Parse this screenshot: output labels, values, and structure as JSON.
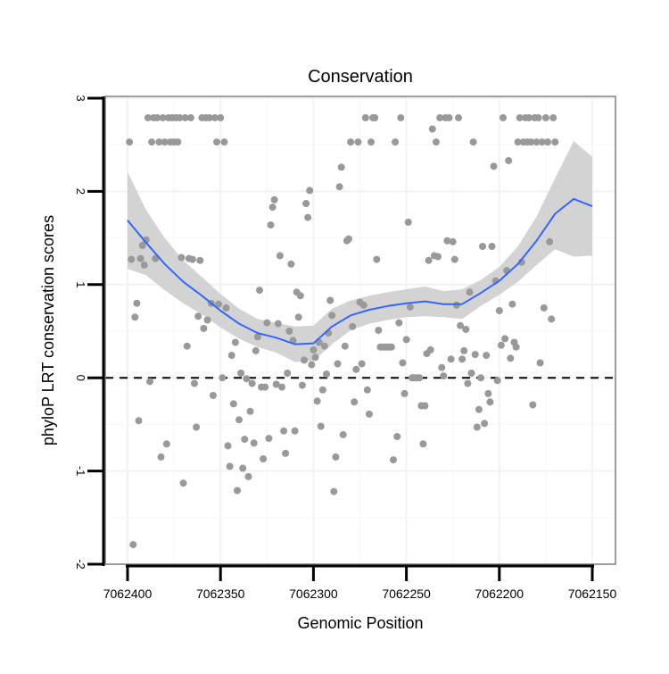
{
  "chart_data": {
    "type": "scatter",
    "title": "Conservation",
    "xlabel": "Genomic Position",
    "ylabel": "phyloP LRT conservation scores",
    "xlim": [
      7062150,
      7062400
    ],
    "x_reversed": true,
    "ylim": [
      -2,
      3
    ],
    "x_ticks": [
      7062400,
      7062350,
      7062300,
      7062250,
      7062200,
      7062150
    ],
    "x_tick_labels": [
      "7062400",
      "7062350",
      "7062300",
      "7062250",
      "7062200",
      "7062150"
    ],
    "y_ticks": [
      -2,
      -1,
      0,
      1,
      2,
      3
    ],
    "y_tick_labels": [
      "-2",
      "-1",
      "0",
      "1",
      "2",
      "3"
    ],
    "grid": true,
    "reference_line": {
      "y": 0,
      "style": "dashed"
    },
    "series": [
      {
        "name": "phyloP scores",
        "kind": "points",
        "color": "#999999",
        "points": [
          [
            7062399,
            2.53
          ],
          [
            7062398,
            1.27
          ],
          [
            7062397,
            -1.79
          ],
          [
            7062396,
            0.65
          ],
          [
            7062395,
            0.8
          ],
          [
            7062394,
            -0.46
          ],
          [
            7062393,
            1.28
          ],
          [
            7062392,
            1.42
          ],
          [
            7062391,
            1.21
          ],
          [
            7062390,
            1.48
          ],
          [
            7062389,
            2.79
          ],
          [
            7062388,
            -0.04
          ],
          [
            7062387,
            2.53
          ],
          [
            7062386,
            2.79
          ],
          [
            7062385,
            1.28
          ],
          [
            7062384,
            2.79
          ],
          [
            7062383,
            2.53
          ],
          [
            7062382,
            -0.85
          ],
          [
            7062381,
            2.79
          ],
          [
            7062380,
            2.53
          ],
          [
            7062379,
            -0.71
          ],
          [
            7062378,
            2.79
          ],
          [
            7062377,
            2.53
          ],
          [
            7062376,
            2.79
          ],
          [
            7062375,
            2.53
          ],
          [
            7062374,
            2.79
          ],
          [
            7062373,
            2.53
          ],
          [
            7062372,
            2.79
          ],
          [
            7062371,
            1.29
          ],
          [
            7062370,
            -1.13
          ],
          [
            7062369,
            2.79
          ],
          [
            7062368,
            0.34
          ],
          [
            7062367,
            1.28
          ],
          [
            7062366,
            2.79
          ],
          [
            7062365,
            1.27
          ],
          [
            7062364,
            -0.06
          ],
          [
            7062363,
            -0.53
          ],
          [
            7062362,
            0.66
          ],
          [
            7062361,
            1.26
          ],
          [
            7062360,
            2.79
          ],
          [
            7062359,
            0.53
          ],
          [
            7062358,
            2.79
          ],
          [
            7062357,
            0.62
          ],
          [
            7062356,
            2.79
          ],
          [
            7062355,
            0.8
          ],
          [
            7062354,
            -0.19
          ],
          [
            7062353,
            2.79
          ],
          [
            7062352,
            2.53
          ],
          [
            7062351,
            0.79
          ],
          [
            7062350,
            2.79
          ],
          [
            7062349,
            0.0
          ],
          [
            7062348,
            2.53
          ],
          [
            7062347,
            0.75
          ],
          [
            7062346,
            -0.73
          ],
          [
            7062345,
            -0.95
          ],
          [
            7062344,
            0.24
          ],
          [
            7062343,
            -0.28
          ],
          [
            7062342,
            0.38
          ],
          [
            7062341,
            -1.21
          ],
          [
            7062340,
            -0.45
          ],
          [
            7062339,
            0.05
          ],
          [
            7062338,
            -0.97
          ],
          [
            7062337,
            -0.66
          ],
          [
            7062336,
            -0.01
          ],
          [
            7062335,
            -1.06
          ],
          [
            7062334,
            -0.36
          ],
          [
            7062333,
            -0.06
          ],
          [
            7062332,
            -0.7
          ],
          [
            7062331,
            0.29
          ],
          [
            7062330,
            0.44
          ],
          [
            7062329,
            0.94
          ],
          [
            7062328,
            -0.1
          ],
          [
            7062327,
            -0.87
          ],
          [
            7062326,
            -0.1
          ],
          [
            7062325,
            0.59
          ],
          [
            7062324,
            -0.65
          ],
          [
            7062323,
            1.64
          ],
          [
            7062322,
            1.83
          ],
          [
            7062321,
            1.91
          ],
          [
            7062320,
            -0.07
          ],
          [
            7062319,
            0.58
          ],
          [
            7062318,
            1.31
          ],
          [
            7062317,
            -0.1
          ],
          [
            7062316,
            -0.57
          ],
          [
            7062315,
            -0.81
          ],
          [
            7062314,
            0.05
          ],
          [
            7062313,
            0.5
          ],
          [
            7062312,
            1.22
          ],
          [
            7062311,
            0.4
          ],
          [
            7062310,
            -0.57
          ],
          [
            7062309,
            0.92
          ],
          [
            7062308,
            0.65
          ],
          [
            7062307,
            0.88
          ],
          [
            7062306,
            -0.08
          ],
          [
            7062305,
            0.19
          ],
          [
            7062304,
            1.87
          ],
          [
            7062303,
            1.72
          ],
          [
            7062302,
            2.01
          ],
          [
            7062301,
            0.14
          ],
          [
            7062300,
            0.3
          ],
          [
            7062299,
            0.22
          ],
          [
            7062298,
            -0.25
          ],
          [
            7062297,
            0.38
          ],
          [
            7062296,
            -0.52
          ],
          [
            7062295,
            -0.13
          ],
          [
            7062294,
            0.34
          ],
          [
            7062293,
            0.04
          ],
          [
            7062292,
            0.48
          ],
          [
            7062291,
            0.83
          ],
          [
            7062290,
            0.67
          ],
          [
            7062289,
            -1.22
          ],
          [
            7062288,
            -0.85
          ],
          [
            7062287,
            0.15
          ],
          [
            7062286,
            2.05
          ],
          [
            7062285,
            2.26
          ],
          [
            7062284,
            -0.61
          ],
          [
            7062283,
            0.34
          ],
          [
            7062282,
            1.47
          ],
          [
            7062281,
            1.49
          ],
          [
            7062280,
            2.53
          ],
          [
            7062279,
            0.55
          ],
          [
            7062278,
            -0.26
          ],
          [
            7062277,
            0.09
          ],
          [
            7062276,
            2.53
          ],
          [
            7062275,
            0.81
          ],
          [
            7062274,
            0.15
          ],
          [
            7062273,
            0.78
          ],
          [
            7062272,
            2.79
          ],
          [
            7062271,
            -0.13
          ],
          [
            7062270,
            -0.39
          ],
          [
            7062269,
            2.53
          ],
          [
            7062268,
            2.79
          ],
          [
            7062267,
            2.79
          ],
          [
            7062266,
            1.27
          ],
          [
            7062265,
            0.51
          ],
          [
            7062264,
            0.33
          ],
          [
            7062263,
            0.33
          ],
          [
            7062262,
            0.33
          ],
          [
            7062261,
            0.33
          ],
          [
            7062260,
            0.33
          ],
          [
            7062259,
            0.33
          ],
          [
            7062258,
            0.33
          ],
          [
            7062257,
            -0.88
          ],
          [
            7062256,
            2.53
          ],
          [
            7062255,
            -0.63
          ],
          [
            7062254,
            0.59
          ],
          [
            7062253,
            2.79
          ],
          [
            7062252,
            0.16
          ],
          [
            7062251,
            -0.17
          ],
          [
            7062250,
            0.41
          ],
          [
            7062249,
            1.67
          ],
          [
            7062248,
            0.76
          ],
          [
            7062247,
            0.0
          ],
          [
            7062246,
            0.0
          ],
          [
            7062245,
            0.0
          ],
          [
            7062244,
            0.0
          ],
          [
            7062243,
            0.0
          ],
          [
            7062242,
            -0.3
          ],
          [
            7062241,
            -0.71
          ],
          [
            7062240,
            -0.3
          ],
          [
            7062239,
            0.26
          ],
          [
            7062238,
            1.26
          ],
          [
            7062237,
            0.3
          ],
          [
            7062236,
            2.67
          ],
          [
            7062235,
            1.31
          ],
          [
            7062234,
            2.53
          ],
          [
            7062233,
            1.3
          ],
          [
            7062232,
            2.79
          ],
          [
            7062231,
            0.11
          ],
          [
            7062230,
            0.02
          ],
          [
            7062229,
            2.79
          ],
          [
            7062228,
            1.47
          ],
          [
            7062227,
            2.79
          ],
          [
            7062226,
            0.2
          ],
          [
            7062225,
            1.46
          ],
          [
            7062224,
            1.27
          ],
          [
            7062223,
            0.78
          ],
          [
            7062222,
            2.79
          ],
          [
            7062221,
            0.56
          ],
          [
            7062220,
            0.2
          ],
          [
            7062219,
            0.29
          ],
          [
            7062218,
            0.52
          ],
          [
            7062217,
            -0.06
          ],
          [
            7062216,
            0.92
          ],
          [
            7062215,
            0.05
          ],
          [
            7062214,
            2.53
          ],
          [
            7062213,
            0.25
          ],
          [
            7062212,
            -0.53
          ],
          [
            7062211,
            -0.34
          ],
          [
            7062210,
            0.0
          ],
          [
            7062209,
            1.41
          ],
          [
            7062208,
            -0.49
          ],
          [
            7062207,
            0.24
          ],
          [
            7062206,
            -0.17
          ],
          [
            7062205,
            -0.26
          ],
          [
            7062204,
            1.41
          ],
          [
            7062203,
            2.27
          ],
          [
            7062202,
            1.04
          ],
          [
            7062201,
            -0.03
          ],
          [
            7062200,
            0.72
          ],
          [
            7062199,
            0.35
          ],
          [
            7062198,
            2.79
          ],
          [
            7062197,
            0.42
          ],
          [
            7062196,
            1.15
          ],
          [
            7062195,
            2.33
          ],
          [
            7062194,
            0.21
          ],
          [
            7062193,
            0.79
          ],
          [
            7062192,
            0.38
          ],
          [
            7062191,
            0.33
          ],
          [
            7062190,
            2.53
          ],
          [
            7062189,
            2.79
          ],
          [
            7062188,
            1.24
          ],
          [
            7062187,
            2.53
          ],
          [
            7062186,
            2.79
          ],
          [
            7062185,
            2.53
          ],
          [
            7062184,
            2.79
          ],
          [
            7062183,
            2.53
          ],
          [
            7062182,
            -0.29
          ],
          [
            7062181,
            2.79
          ],
          [
            7062180,
            2.53
          ],
          [
            7062179,
            2.79
          ],
          [
            7062178,
            0.16
          ],
          [
            7062177,
            2.53
          ],
          [
            7062176,
            0.75
          ],
          [
            7062175,
            2.79
          ],
          [
            7062174,
            2.53
          ],
          [
            7062173,
            1.46
          ],
          [
            7062172,
            0.63
          ],
          [
            7062171,
            2.79
          ],
          [
            7062170,
            2.53
          ]
        ]
      },
      {
        "name": "smoothed fit",
        "kind": "line",
        "color": "#3366ff",
        "fill_color": "#d3d3d3",
        "points": [
          [
            7062400,
            1.69,
            1.17,
            2.21
          ],
          [
            7062390,
            1.45,
            1.1,
            1.8
          ],
          [
            7062380,
            1.22,
            0.94,
            1.5
          ],
          [
            7062370,
            1.03,
            0.8,
            1.26
          ],
          [
            7062360,
            0.88,
            0.68,
            1.08
          ],
          [
            7062350,
            0.72,
            0.54,
            0.9
          ],
          [
            7062340,
            0.58,
            0.42,
            0.74
          ],
          [
            7062330,
            0.48,
            0.33,
            0.63
          ],
          [
            7062320,
            0.43,
            0.27,
            0.59
          ],
          [
            7062310,
            0.36,
            0.17,
            0.55
          ],
          [
            7062300,
            0.37,
            0.18,
            0.56
          ],
          [
            7062290,
            0.55,
            0.36,
            0.74
          ],
          [
            7062280,
            0.67,
            0.51,
            0.83
          ],
          [
            7062270,
            0.73,
            0.58,
            0.88
          ],
          [
            7062260,
            0.77,
            0.62,
            0.92
          ],
          [
            7062250,
            0.8,
            0.65,
            0.95
          ],
          [
            7062240,
            0.82,
            0.66,
            0.98
          ],
          [
            7062230,
            0.79,
            0.65,
            0.93
          ],
          [
            7062220,
            0.79,
            0.63,
            0.95
          ],
          [
            7062210,
            0.91,
            0.77,
            1.05
          ],
          [
            7062200,
            1.04,
            0.89,
            1.19
          ],
          [
            7062190,
            1.22,
            1.03,
            1.41
          ],
          [
            7062180,
            1.47,
            1.21,
            1.73
          ],
          [
            7062170,
            1.76,
            1.38,
            2.14
          ],
          [
            7062160,
            1.92,
            1.3,
            2.54
          ],
          [
            7062150,
            1.84,
            1.31,
            2.37
          ]
        ]
      }
    ]
  }
}
